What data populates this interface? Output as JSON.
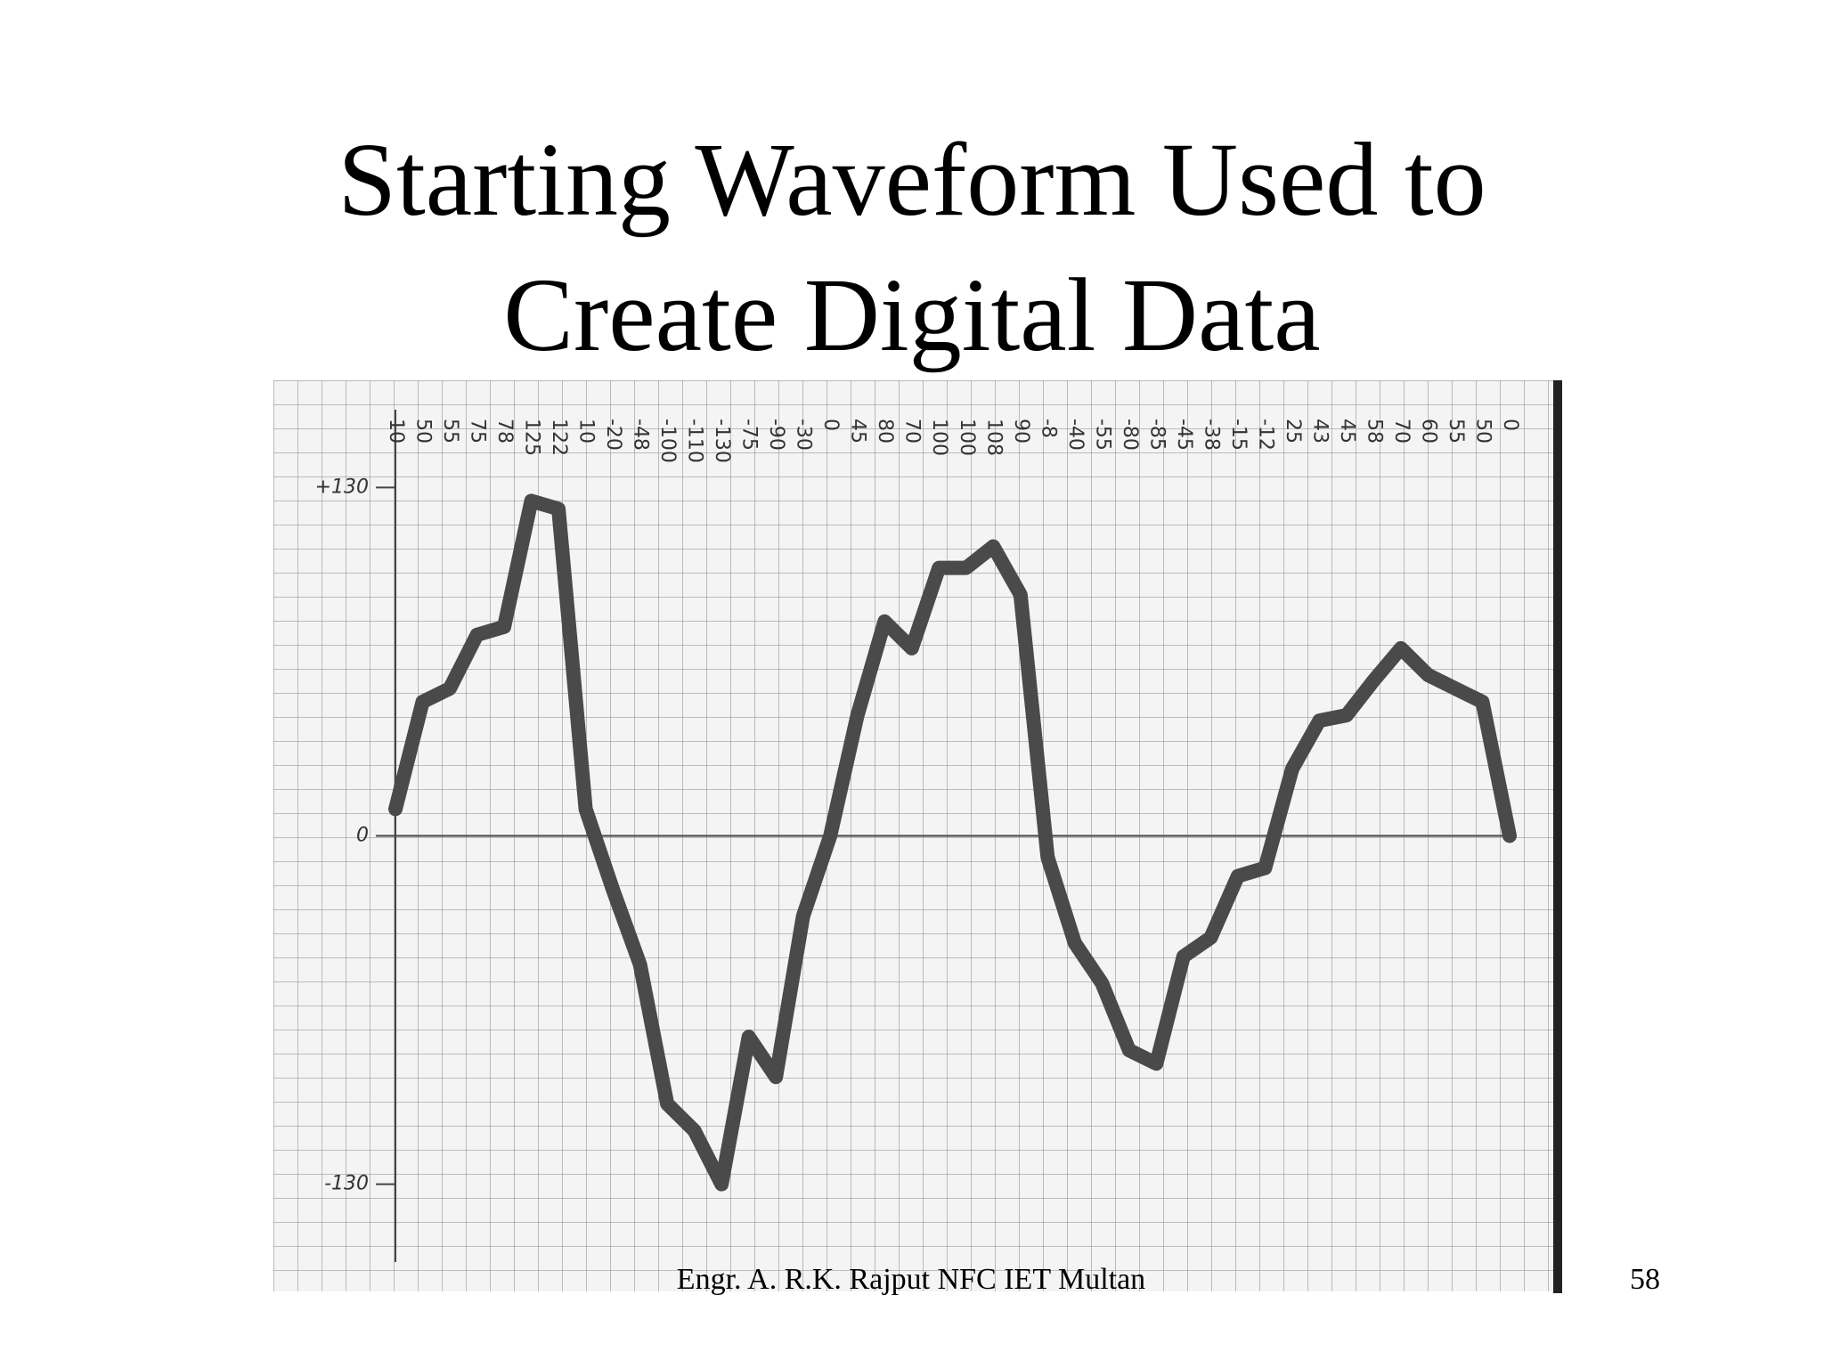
{
  "title": "Starting Waveform Used to Create Digital Data",
  "footer": "Engr. A. R.K. Rajput NFC IET Multan",
  "page_number": 58,
  "chart_data": {
    "type": "line",
    "values": [
      10,
      50,
      55,
      75,
      78,
      125,
      122,
      10,
      -20,
      -48,
      -100,
      -110,
      -130,
      -75,
      -90,
      -30,
      0,
      45,
      80,
      70,
      100,
      100,
      108,
      90,
      -8,
      -40,
      -55,
      -80,
      -85,
      -45,
      -38,
      -15,
      -12,
      25,
      43,
      45,
      58,
      70,
      60,
      55,
      50,
      0
    ],
    "color": "#4a4a4a",
    "ylim": [
      -170,
      170
    ],
    "yticks": [
      {
        "value": 130,
        "label": "+130"
      },
      0,
      -130
    ]
  }
}
